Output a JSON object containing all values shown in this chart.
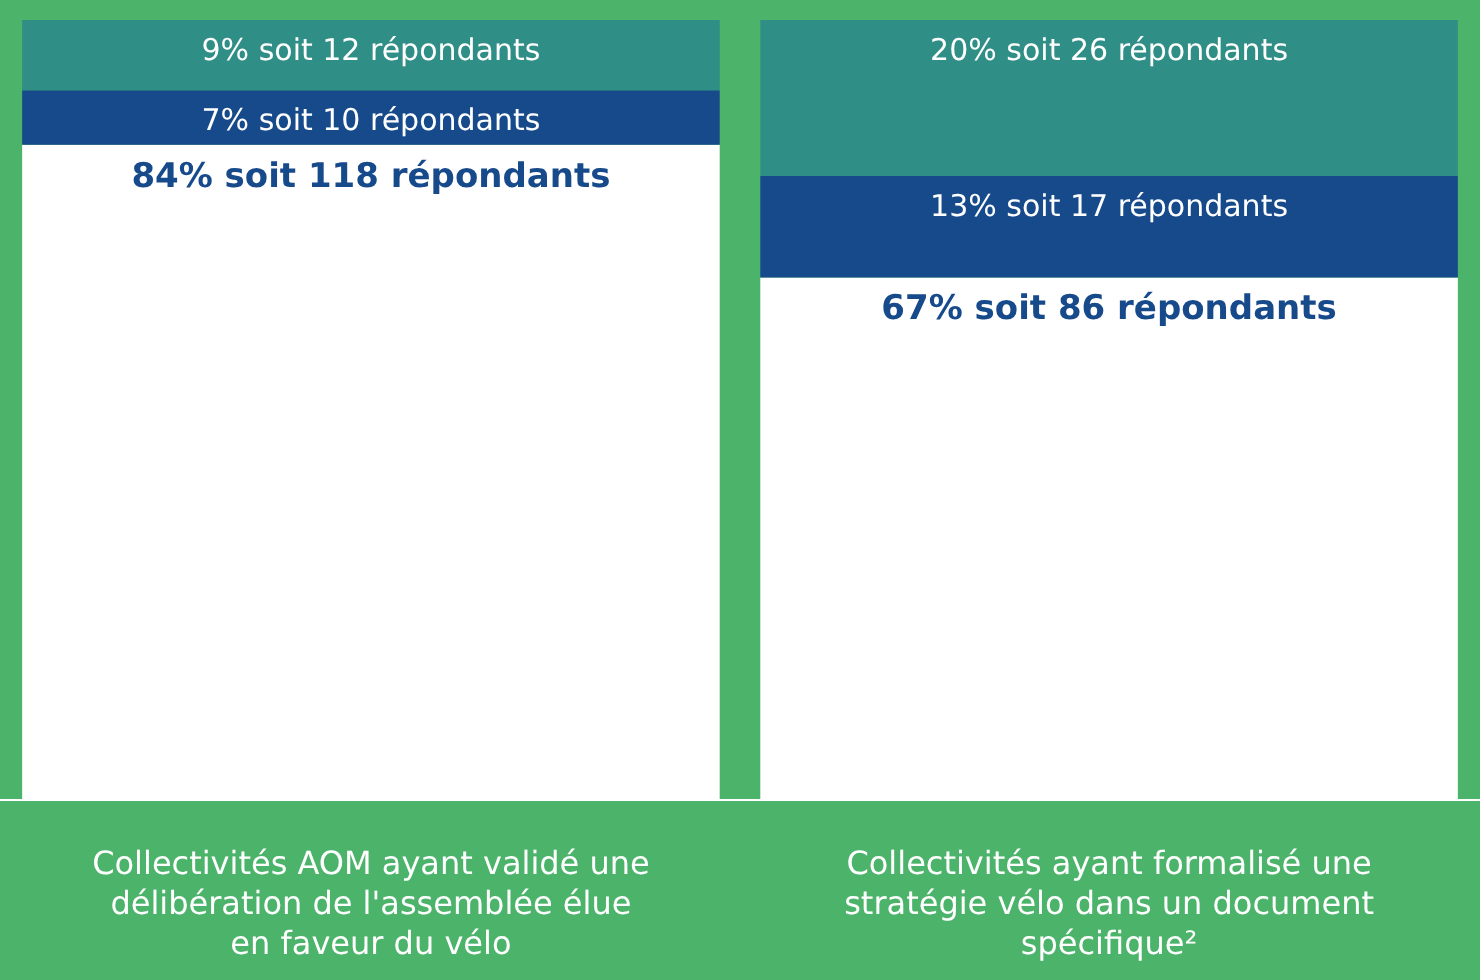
{
  "chart_data": {
    "type": "bar",
    "stacked": true,
    "categories": [
      "Collectivités AOM ayant validé une délibération de l'assemblée élue en faveur du vélo",
      "Collectivités ayant formalisé une stratégie vélo dans un document spécifique²"
    ],
    "series": [
      {
        "color": "#ffffff",
        "values": [
          84,
          67
        ],
        "value_labels": [
          "84% soit 118 répondants",
          "67% soit 86 répondants"
        ]
      },
      {
        "color": "#164a8b",
        "values": [
          7,
          13
        ],
        "value_labels": [
          "7% soit 10 répondants",
          "13% soit 17 répondants"
        ]
      },
      {
        "color": "#2f8e86",
        "values": [
          9,
          20
        ],
        "value_labels": [
          "9% soit 12 répondants",
          "20% soit 26 répondants"
        ]
      }
    ]
  }
}
